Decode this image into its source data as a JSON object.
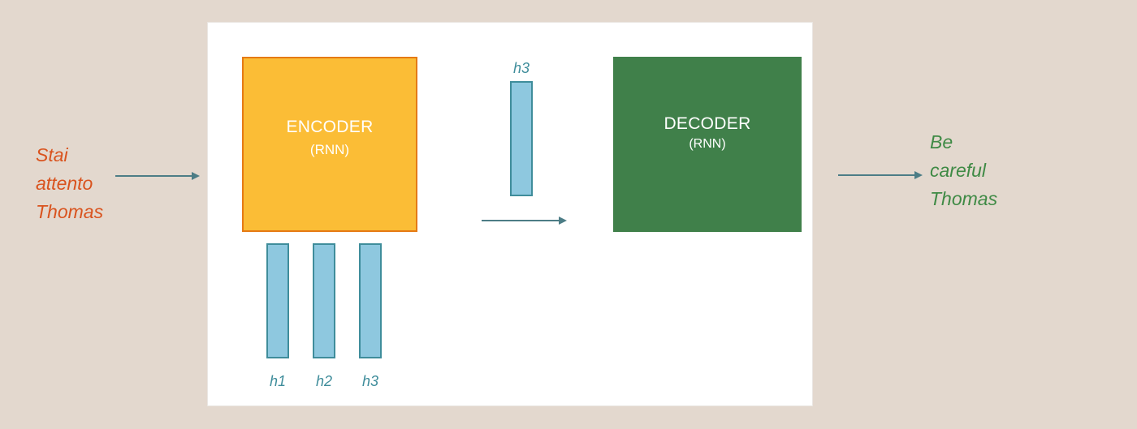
{
  "source_sentence": [
    "Stai",
    "attento",
    "Thomas"
  ],
  "target_sentence": [
    "Be",
    "careful",
    "Thomas"
  ],
  "encoder": {
    "title": "ENCODER",
    "subtitle": "(RNN)"
  },
  "decoder": {
    "title": "DECODER",
    "subtitle": "(RNN)"
  },
  "hidden_states": [
    "h1",
    "h2",
    "h3"
  ],
  "context_vector": "h3",
  "colors": {
    "background": "#e3d8ce",
    "panel": "#ffffff",
    "encoder_fill": "#fbbd36",
    "encoder_border": "#e57a14",
    "decoder_fill": "#40804a",
    "hidden_fill": "#8ec8df",
    "hidden_border": "#3f8d9b",
    "source_text": "#d9531e",
    "target_text": "#3f8a45",
    "arrow": "#4c7d86"
  }
}
